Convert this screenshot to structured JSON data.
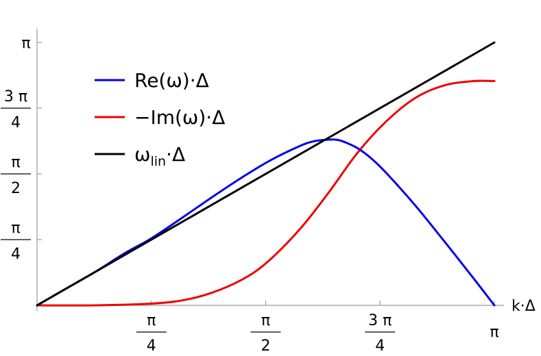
{
  "chart_data": {
    "type": "line",
    "xlabel": "k·Δ",
    "ylabel": "",
    "xlim": [
      0,
      3.14159
    ],
    "ylim": [
      0,
      3.14159
    ],
    "grid": false,
    "legend_position": "top-left",
    "x_ticks": [
      {
        "value": 0.7854,
        "num": "π",
        "den": "4"
      },
      {
        "value": 1.5708,
        "num": "π",
        "den": "2"
      },
      {
        "value": 2.3562,
        "num": "3 π",
        "den": "4"
      },
      {
        "value": 3.14159,
        "label": "π"
      }
    ],
    "y_ticks": [
      {
        "value": 0.7854,
        "num": "π",
        "den": "4"
      },
      {
        "value": 1.5708,
        "num": "π",
        "den": "2"
      },
      {
        "value": 2.3562,
        "num": "3 π",
        "den": "4"
      },
      {
        "value": 3.14159,
        "label": "π"
      }
    ],
    "series": [
      {
        "name": "Re(ω)·Δ",
        "color": "#0000ee",
        "x": [
          0,
          0.2,
          0.4,
          0.6,
          0.785,
          1.0,
          1.2,
          1.4,
          1.6,
          1.8,
          1.9,
          2.0,
          2.05,
          2.1,
          2.2,
          2.3,
          2.4,
          2.6,
          2.8,
          3.0,
          3.14159
        ],
        "y": [
          0,
          0.2,
          0.4,
          0.62,
          0.8,
          1.05,
          1.29,
          1.52,
          1.73,
          1.9,
          1.96,
          1.98,
          1.98,
          1.96,
          1.88,
          1.75,
          1.58,
          1.19,
          0.76,
          0.32,
          0
        ]
      },
      {
        "name": "−Im(ω)·Δ",
        "color": "#ee0000",
        "x": [
          0,
          0.4,
          0.785,
          1.0,
          1.2,
          1.4,
          1.5708,
          1.8,
          2.0,
          2.2,
          2.4,
          2.6,
          2.8,
          3.0,
          3.14159
        ],
        "y": [
          0,
          0,
          0.02,
          0.06,
          0.15,
          0.3,
          0.5,
          0.9,
          1.34,
          1.82,
          2.2,
          2.48,
          2.63,
          2.68,
          2.68
        ]
      },
      {
        "name": "ω",
        "name_sub": "lin",
        "name_suffix": "·Δ",
        "color": "#000000",
        "x": [
          0,
          3.14159
        ],
        "y": [
          0,
          3.14159
        ]
      }
    ]
  }
}
